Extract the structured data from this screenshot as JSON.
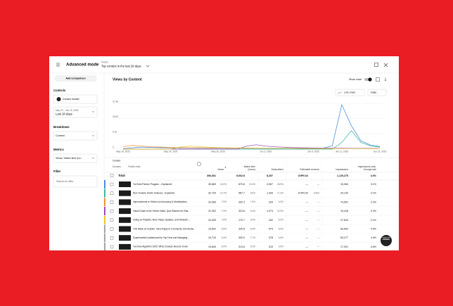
{
  "header": {
    "title": "Advanced mode",
    "period_label": "Period",
    "period_value": "Top content in the last 28 days"
  },
  "sidebar": {
    "add_button": "Add comparison",
    "controls": "Controls",
    "channel": "Creator Insider",
    "date_range": "May 19 – Jun 15, 2025",
    "date_preset": "Last 28 days",
    "breakdown": "Breakdown",
    "breakdown_value": "Content",
    "metrics": "Metrics",
    "metrics_value": "Views, Watch time (ho...",
    "filter": "Filter",
    "filter_placeholder": "Search for filter"
  },
  "main": {
    "title": "Views by Content",
    "show_chart": "Show chart",
    "chart_type": "Line chart",
    "interval": "Daily"
  },
  "chart": {
    "type": "line",
    "categories": [
      "May 19, 2025",
      null,
      null,
      null,
      null,
      "May 24, 2025",
      null,
      null,
      null,
      null,
      "May 29, 2025",
      null,
      null,
      null,
      null,
      "Jun 3, 2025",
      null,
      null,
      null,
      null,
      "Jun 8, 2025",
      null,
      null,
      "Jun 11, 2025",
      null,
      null,
      null,
      "Jun 15, 2025"
    ],
    "ylim": [
      0,
      27300
    ],
    "yticks": [
      0,
      {
        "value": 9100,
        "label": "9.1K"
      },
      {
        "value": 18200,
        "label": "18.2K"
      },
      {
        "value": 27300,
        "label": "27.3K"
      }
    ],
    "grid": true,
    "series": [
      {
        "color": "#3b7fd9",
        "values": [
          300,
          800,
          1200,
          1000,
          900,
          800,
          700,
          650,
          600,
          600,
          550,
          500,
          500,
          450,
          450,
          400,
          400,
          400,
          400,
          400,
          400,
          500,
          2000,
          26500,
          14000,
          5000,
          2500,
          1500
        ]
      },
      {
        "color": "#2bb38f",
        "values": [
          0,
          0,
          0,
          0,
          0,
          0,
          0,
          0,
          0,
          0,
          0,
          0,
          0,
          0,
          0,
          0,
          0,
          0,
          0,
          0,
          0,
          0,
          0,
          4000,
          11000,
          4000,
          2000,
          1200
        ]
      },
      {
        "color": "#f08a24",
        "values": [
          1500,
          2200,
          1800,
          1400,
          1200,
          1000,
          900,
          800,
          800,
          700,
          700,
          600,
          600,
          600,
          500,
          500,
          500,
          500,
          500,
          450,
          450,
          450,
          400,
          400,
          400,
          400,
          400,
          350
        ]
      },
      {
        "color": "#8e3bb8",
        "values": [
          0,
          0,
          0,
          0,
          0,
          0,
          0,
          0,
          0,
          0,
          0,
          0,
          0,
          1800,
          2600,
          1800,
          1400,
          1100,
          900,
          800,
          700,
          650,
          600,
          550,
          500,
          500,
          450,
          400
        ]
      },
      {
        "color": "#e8c21a",
        "values": [
          0,
          0,
          0,
          0,
          0,
          0,
          1200,
          1800,
          1500,
          1100,
          900,
          800,
          700,
          650,
          600,
          550,
          500,
          500,
          450,
          450,
          400,
          400,
          400,
          350,
          350,
          350,
          300,
          300
        ]
      }
    ]
  },
  "table": {
    "content_header": "Content",
    "duration": "Duration",
    "publish_date": "Publish date",
    "columns": [
      "Views",
      "Watch time (hours)",
      "Subscribers",
      "Estimated revenue",
      "Impressions",
      "Impressions click-through rate"
    ],
    "total": {
      "label": "Total",
      "cells": [
        "306,651",
        "5,062.8",
        "8,257",
        "CHF0.02",
        "1,129,275",
        "3.0%"
      ]
    },
    "rows": [
      {
        "title": "YouTube Partner Program – Explained!",
        "color": "#3b7fd9",
        "cells": [
          "30,669",
          "10.0%",
          "670.6",
          "13.2%",
          "3,057",
          "36.9%",
          "—",
          "—",
          "15,364",
          "3.1%"
        ]
      },
      {
        "title": "New Youtube Shorts Features - Explained",
        "color": "#2bb38f",
        "cells": [
          "32,720",
          "10.7%",
          "487.7",
          "9.6%",
          "1,426",
          "17.3%",
          "CHF0.02",
          "100%",
          "24,142",
          "2.1%"
        ]
      },
      {
        "title": "Improvements to Yellow Icon Accuracy & Monetization...",
        "color": "#f08a24",
        "cells": [
          "24,369",
          "7.9%",
          "352.3",
          "7.0%",
          "329",
          "4.0%",
          "—",
          "—",
          "74,501",
          "2.2%"
        ]
      },
      {
        "title": "Visual Guide to the Shorts Editor, Quiz Stickers for Kids...",
        "color": "#8e3bb8",
        "cells": [
          "22,302",
          "7.3%",
          "323.6",
          "6.4%",
          "1,074",
          "13.0%",
          "—",
          "—",
          "19,418",
          "3.2%"
        ]
      },
      {
        "title": "Voting on Playlists, More Player Updates, and 'Redeem'...",
        "color": "#e8c21a",
        "cells": [
          "23,309",
          "7.6%",
          "170.7",
          "3.4%",
          "432",
          "5.2%",
          "—",
          "—",
          "27,834",
          "2.1%"
        ]
      },
      {
        "title": "This Week at Youtube: Voice Reply to Comments, Ask Studio...",
        "color": "#9e9e9e",
        "cells": [
          "19,802",
          "6.5%",
          "325.5",
          "6.4%",
          "574",
          "6.9%",
          "—",
          "—",
          "83,692",
          "4.0%"
        ]
      },
      {
        "title": "Experimental Leaderboard for Top Fans and Managing...",
        "color": "#9e9e9e",
        "cells": [
          "19,719",
          "6.4%",
          "392.0",
          "7.7%",
          "378",
          "4.6%",
          "—",
          "—",
          "63,277",
          "4.3%"
        ]
      },
      {
        "title": "YouTube Algorithm 2025: What Creators Need to Know",
        "color": "#9e9e9e",
        "cells": [
          "19,600",
          "6.4%",
          "313.6",
          "6.2%",
          "319",
          "3.9%",
          "—",
          "—",
          "17,921",
          "4.0%"
        ]
      }
    ]
  },
  "badge": "CREATOR INSIDER"
}
